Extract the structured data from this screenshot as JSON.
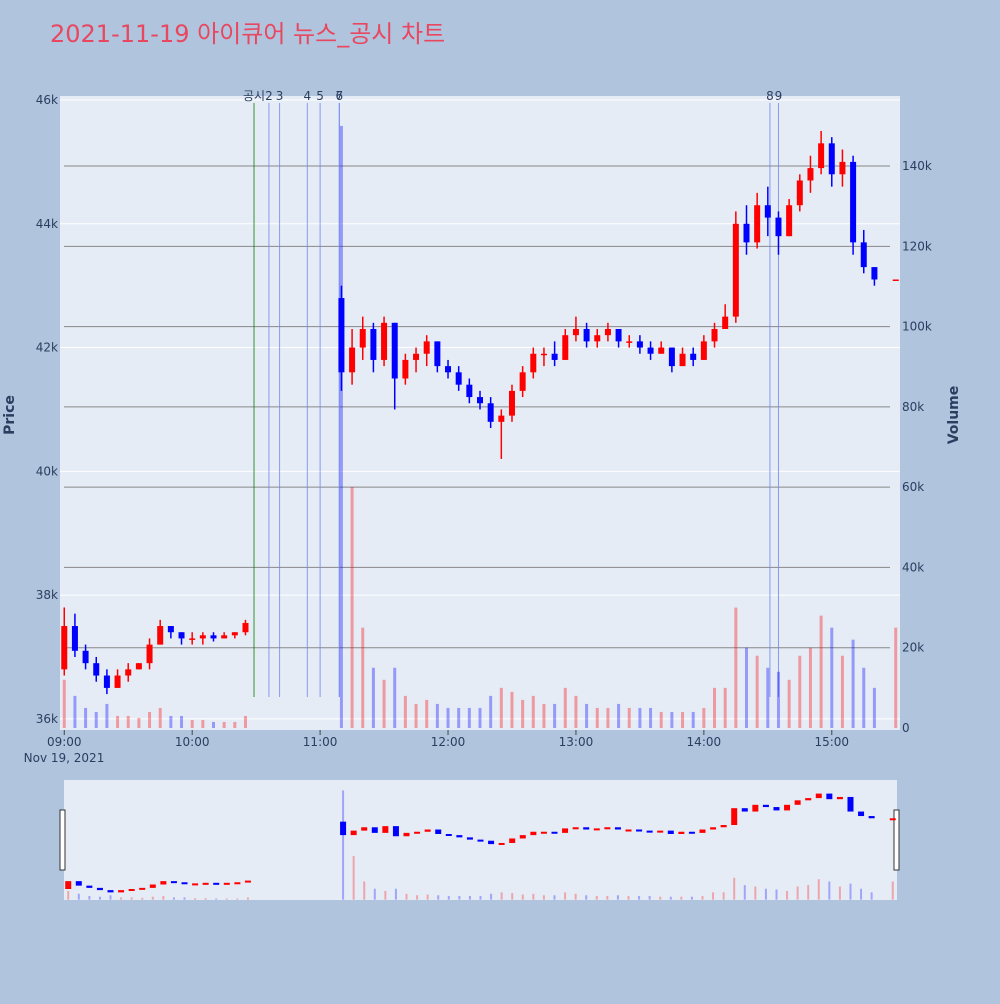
{
  "chart_data": {
    "type": "candlestick",
    "title": "2021-11-19 아이큐어 뉴스_공시 차트",
    "x_date_label": "Nov 19, 2021",
    "ylabel": "Price",
    "y2label": "Volume",
    "x": [
      "09:00",
      "09:05",
      "09:10",
      "09:15",
      "09:20",
      "09:25",
      "09:30",
      "09:35",
      "09:40",
      "09:45",
      "09:50",
      "09:55",
      "10:00",
      "10:05",
      "10:10",
      "10:15",
      "10:20",
      "10:25",
      "11:10",
      "11:15",
      "11:20",
      "11:25",
      "11:30",
      "11:35",
      "11:40",
      "11:45",
      "11:50",
      "11:55",
      "12:00",
      "12:05",
      "12:10",
      "12:15",
      "12:20",
      "12:25",
      "12:30",
      "12:35",
      "12:40",
      "12:45",
      "12:50",
      "12:55",
      "13:00",
      "13:05",
      "13:10",
      "13:15",
      "13:20",
      "13:25",
      "13:30",
      "13:35",
      "13:40",
      "13:45",
      "13:50",
      "13:55",
      "14:00",
      "14:05",
      "14:10",
      "14:15",
      "14:20",
      "14:25",
      "14:30",
      "14:35",
      "14:40",
      "14:45",
      "14:50",
      "14:55",
      "15:00",
      "15:05",
      "15:10",
      "15:15",
      "15:20",
      "15:30"
    ],
    "open": [
      36800,
      37500,
      37100,
      36900,
      36700,
      36500,
      36700,
      36800,
      36900,
      37200,
      37500,
      37400,
      37300,
      37300,
      37350,
      37300,
      37350,
      37400,
      42800,
      41600,
      42000,
      42300,
      41800,
      42400,
      41500,
      41800,
      41900,
      42100,
      41700,
      41600,
      41400,
      41200,
      41100,
      40800,
      40900,
      41300,
      41600,
      41900,
      41900,
      41800,
      42200,
      42300,
      42100,
      42200,
      42300,
      42100,
      42100,
      42000,
      41900,
      42000,
      41700,
      41900,
      41800,
      42100,
      42300,
      42500,
      44000,
      43700,
      44300,
      44100,
      43800,
      44300,
      44700,
      44900,
      45300,
      44800,
      45000,
      43700,
      43300,
      43100
    ],
    "high": [
      37800,
      37700,
      37200,
      37000,
      36800,
      36800,
      36900,
      36900,
      37300,
      37600,
      37500,
      37400,
      37400,
      37400,
      37400,
      37400,
      37400,
      37600,
      43000,
      42300,
      42500,
      42400,
      42500,
      42400,
      41900,
      42000,
      42200,
      42100,
      41800,
      41700,
      41500,
      41300,
      41200,
      41000,
      41400,
      41700,
      42000,
      42000,
      42100,
      42300,
      42500,
      42400,
      42300,
      42400,
      42300,
      42200,
      42200,
      42100,
      42100,
      42000,
      42000,
      42000,
      42200,
      42400,
      42700,
      44200,
      44300,
      44500,
      44600,
      44200,
      44400,
      44800,
      45100,
      45500,
      45400,
      45200,
      45100,
      43900,
      43300,
      43100
    ],
    "low": [
      36700,
      37000,
      36800,
      36600,
      36400,
      36500,
      36600,
      36800,
      36800,
      37200,
      37300,
      37200,
      37200,
      37200,
      37250,
      37300,
      37300,
      37350,
      41300,
      41400,
      41800,
      41600,
      41700,
      41000,
      41400,
      41600,
      41700,
      41600,
      41500,
      41300,
      41100,
      41000,
      40700,
      40200,
      40800,
      41200,
      41500,
      41700,
      41700,
      41800,
      42100,
      42000,
      42000,
      42100,
      42000,
      42000,
      41900,
      41800,
      41900,
      41600,
      41700,
      41700,
      41800,
      42000,
      42300,
      42400,
      43500,
      43600,
      43800,
      43500,
      43800,
      44200,
      44500,
      44800,
      44600,
      44600,
      43500,
      43200,
      43000,
      43100
    ],
    "close": [
      37500,
      37100,
      36900,
      36700,
      36500,
      36700,
      36800,
      36900,
      37200,
      37500,
      37400,
      37300,
      37300,
      37350,
      37300,
      37350,
      37400,
      37550,
      41600,
      42000,
      42300,
      41800,
      42400,
      41500,
      41800,
      41900,
      42100,
      41700,
      41600,
      41400,
      41200,
      41100,
      40800,
      40900,
      41300,
      41600,
      41900,
      41900,
      41800,
      42200,
      42300,
      42100,
      42200,
      42300,
      42100,
      42100,
      42000,
      41900,
      42000,
      41700,
      41900,
      41800,
      42100,
      42300,
      42500,
      44000,
      43700,
      44300,
      44100,
      43800,
      44300,
      44700,
      44900,
      45300,
      44800,
      45000,
      43700,
      43300,
      43100,
      43100
    ],
    "volume": [
      12000,
      8000,
      5000,
      4000,
      6000,
      3000,
      3000,
      2500,
      4000,
      5000,
      3000,
      3000,
      2000,
      2000,
      1500,
      1500,
      1500,
      3000,
      150000,
      60000,
      25000,
      15000,
      12000,
      15000,
      8000,
      6000,
      7000,
      6000,
      5000,
      5000,
      5000,
      5000,
      8000,
      10000,
      9000,
      7000,
      8000,
      6000,
      6000,
      10000,
      8000,
      6000,
      5000,
      5000,
      6000,
      5000,
      5000,
      5000,
      4000,
      4000,
      4000,
      4000,
      5000,
      10000,
      10000,
      30000,
      20000,
      18000,
      15000,
      14000,
      12000,
      18000,
      20000,
      28000,
      25000,
      18000,
      22000,
      15000,
      10000,
      25000
    ],
    "xlim": [
      "08:58",
      "15:32"
    ],
    "xticks": [
      "09:00",
      "10:00",
      "11:00",
      "12:00",
      "13:00",
      "14:00",
      "15:00"
    ],
    "ylim": [
      35820,
      46065
    ],
    "yticks": [
      {
        "value": 36000,
        "label": "36k"
      },
      {
        "value": 38000,
        "label": "38k"
      },
      {
        "value": 40000,
        "label": "40k"
      },
      {
        "value": 42000,
        "label": "42k"
      },
      {
        "value": 44000,
        "label": "44k"
      },
      {
        "value": 46000,
        "label": "46k"
      }
    ],
    "y2lim": [
      -500,
      157450
    ],
    "y2ticks": [
      0,
      {
        "value": 20000,
        "label": "20k"
      },
      {
        "value": 40000,
        "label": "40k"
      },
      {
        "value": 60000,
        "label": "60k"
      },
      {
        "value": 80000,
        "label": "80k"
      },
      {
        "value": 100000,
        "label": "100k"
      },
      {
        "value": 120000,
        "label": "120k"
      },
      {
        "value": 140000,
        "label": "140k"
      }
    ],
    "increasing_color": "#ff0000",
    "decreasing_color": "#0000ff",
    "grid": true,
    "events": [
      {
        "label": "공시",
        "time": "10:29",
        "color": "#008000"
      },
      {
        "label": "2",
        "time": "10:36",
        "color": "#6f86f0"
      },
      {
        "label": "3",
        "time": "10:41",
        "color": "#6f86f0"
      },
      {
        "label": "4",
        "time": "10:54",
        "color": "#6f86f0"
      },
      {
        "label": "5",
        "time": "11:00",
        "color": "#6f86f0"
      },
      {
        "label": "6",
        "time": "11:09",
        "color": "#6f86f0"
      },
      {
        "label": "7",
        "time": "11:09",
        "color": "#6f86f0"
      },
      {
        "label": "8",
        "time": "14:31",
        "color": "#6f86f0"
      },
      {
        "label": "9",
        "time": "14:35",
        "color": "#6f86f0"
      }
    ]
  }
}
